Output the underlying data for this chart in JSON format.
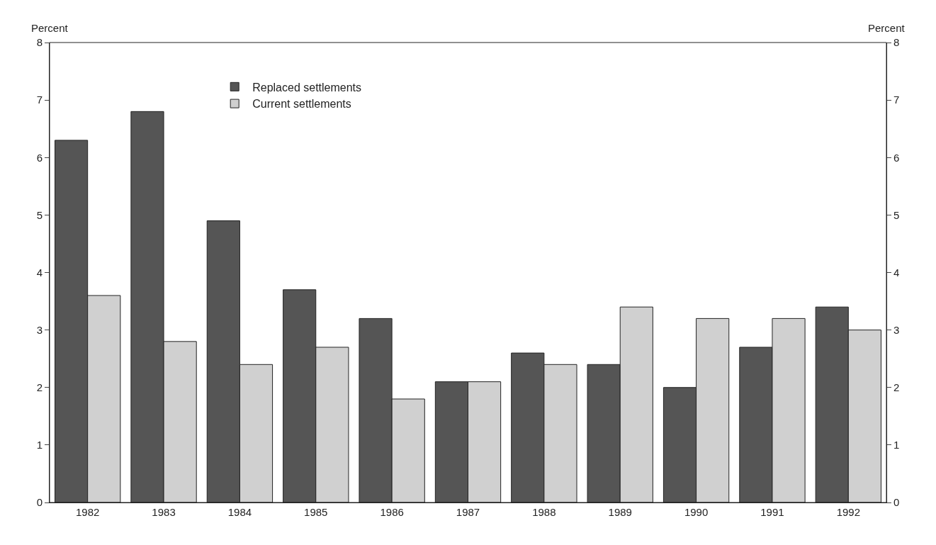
{
  "chart_data": {
    "type": "bar",
    "ylabel": "Percent",
    "y2label": "Percent",
    "categories": [
      "1982",
      "1983",
      "1984",
      "1985",
      "1986",
      "1987",
      "1988",
      "1989",
      "1990",
      "1991",
      "1992"
    ],
    "series": [
      {
        "name": "Replaced settlements",
        "color": "#555555",
        "values": [
          6.3,
          6.8,
          4.9,
          3.7,
          3.2,
          2.1,
          2.6,
          2.4,
          2.0,
          2.7,
          3.4
        ]
      },
      {
        "name": "Current settlements",
        "color": "#d0d0d0",
        "values": [
          3.6,
          2.8,
          2.4,
          2.7,
          1.8,
          2.1,
          2.4,
          3.4,
          3.2,
          3.2,
          3.0
        ]
      }
    ],
    "ylim": [
      0,
      8
    ],
    "yticks": [
      0,
      1,
      2,
      3,
      4,
      5,
      6,
      7,
      8
    ],
    "y2lim": [
      0,
      8
    ],
    "y2ticks": [
      0,
      1,
      2,
      3,
      4,
      5,
      6,
      7,
      8
    ],
    "grid": false,
    "legend": "top left"
  }
}
